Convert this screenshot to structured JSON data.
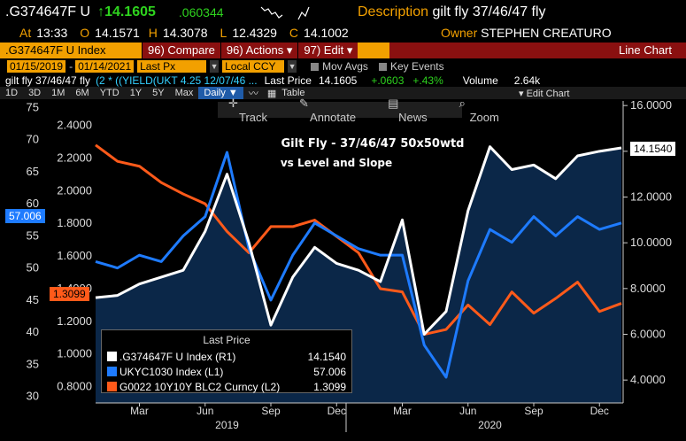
{
  "header": {
    "ticker": ".G374647F U",
    "last": "↑14.1605",
    "change": ".060344",
    "desc_label": "Description",
    "desc_value": "gilt fly 37/46/47 fly",
    "at_label": "At",
    "at_value": "13:33",
    "o_label": "O",
    "o_value": "14.1571",
    "h_label": "H",
    "h_value": "14.3078",
    "l_label": "L",
    "l_value": "12.4329",
    "c_label": "C",
    "c_value": "14.1002",
    "owner_label": "Owner",
    "owner_value": "STEPHEN CREATURO"
  },
  "toolbar": {
    "security": ".G374647F U Index",
    "compare_num": "96)",
    "compare": "Compare",
    "actions_num": "96)",
    "actions": "Actions",
    "edit_num": "97)",
    "edit": "Edit",
    "line_chart": "Line Chart"
  },
  "params": {
    "start_date": "01/15/2019",
    "end_date": "01/14/2021",
    "field": "Last Px",
    "currency": "Local CCY",
    "mov_avgs": "Mov Avgs",
    "key_events": "Key Events"
  },
  "info": {
    "name": "gilt fly 37/46/47 fly",
    "formula": "(2 * ((YIELD(UKT 4.25 12/07/46 ...",
    "last_price_label": "Last Price",
    "last_price": "14.1605",
    "change": "+.0603",
    "pct": "+.43%",
    "volume_label": "Volume",
    "volume": "2.64k"
  },
  "periods": [
    "1D",
    "3D",
    "1M",
    "6M",
    "YTD",
    "1Y",
    "5Y",
    "Max"
  ],
  "daily": "Daily",
  "table": "Table",
  "edit_chart": "Edit Chart",
  "tools": [
    "Track",
    "Annotate",
    "News",
    "Zoom"
  ],
  "colors": {
    "white_series": "#ffffff",
    "blue_series": "#1e7bff",
    "orange_series": "#ff5a1a",
    "accent": "#f2a000",
    "area": "#0b2748"
  },
  "chart_data": {
    "type": "line",
    "title": "Gilt Fly - 37/46/47 50x50wtd",
    "subtitle": "vs Level and Slope",
    "x_ticks": [
      "Mar",
      "Jun",
      "Sep",
      "Dec",
      "Mar",
      "Jun",
      "Sep",
      "Dec"
    ],
    "x_years": [
      "2019",
      "2020"
    ],
    "left_axis_outer": {
      "ticks": [
        "75",
        "70",
        "65",
        "60",
        "55",
        "50",
        "45",
        "40",
        "35",
        "30"
      ],
      "range": [
        29,
        76
      ]
    },
    "left_axis_inner": {
      "ticks": [
        "2.4000",
        "2.2000",
        "2.0000",
        "1.8000",
        "1.6000",
        "1.4000",
        "1.2000",
        "1.0000",
        "0.8000"
      ],
      "range": [
        0.7,
        2.55
      ]
    },
    "right_axis": {
      "ticks": [
        "16.0000",
        "14.0000",
        "12.0000",
        "10.0000",
        "8.0000",
        "6.0000",
        "4.0000"
      ],
      "range": [
        3,
        16.2
      ]
    },
    "series": [
      {
        "name": ".G374647F U Index (R1)",
        "value": "14.1540",
        "dates": [
          "2019-01",
          "2019-02",
          "2019-03",
          "2019-04",
          "2019-05",
          "2019-06",
          "2019-07",
          "2019-08",
          "2019-09",
          "2019-10",
          "2019-11",
          "2019-12",
          "2020-01",
          "2020-02",
          "2020-03",
          "2020-04",
          "2020-05",
          "2020-06",
          "2020-07",
          "2020-08",
          "2020-09",
          "2020-10",
          "2020-11",
          "2020-12",
          "2021-01"
        ],
        "values": [
          7.6,
          7.7,
          8.2,
          8.5,
          8.8,
          10.5,
          13.0,
          10.0,
          6.4,
          8.5,
          9.8,
          9.1,
          8.8,
          8.3,
          11.0,
          6.0,
          7.0,
          11.4,
          14.2,
          13.2,
          13.4,
          12.8,
          13.8,
          14.0,
          14.15
        ]
      },
      {
        "name": "UKYC1030 Index (L1)",
        "value": "57.006",
        "dates": [
          "2019-01",
          "2019-02",
          "2019-03",
          "2019-04",
          "2019-05",
          "2019-06",
          "2019-07",
          "2019-08",
          "2019-09",
          "2019-10",
          "2019-11",
          "2019-12",
          "2020-01",
          "2020-02",
          "2020-03",
          "2020-04",
          "2020-05",
          "2020-06",
          "2020-07",
          "2020-08",
          "2020-09",
          "2020-10",
          "2020-11",
          "2020-12",
          "2021-01"
        ],
        "values": [
          51,
          50,
          52,
          51,
          55,
          58,
          68,
          53,
          45,
          52,
          57,
          55,
          53,
          52,
          52,
          38,
          33,
          48,
          56,
          54,
          58,
          55,
          58,
          56,
          57.006
        ]
      },
      {
        "name": "G0022 10Y10Y BLC2 Curncy (L2)",
        "value": "1.3099",
        "dates": [
          "2019-01",
          "2019-02",
          "2019-03",
          "2019-04",
          "2019-05",
          "2019-06",
          "2019-07",
          "2019-08",
          "2019-09",
          "2019-10",
          "2019-11",
          "2019-12",
          "2020-01",
          "2020-02",
          "2020-03",
          "2020-04",
          "2020-05",
          "2020-06",
          "2020-07",
          "2020-08",
          "2020-09",
          "2020-10",
          "2020-11",
          "2020-12",
          "2021-01"
        ],
        "values": [
          2.28,
          2.18,
          2.15,
          2.05,
          1.98,
          1.92,
          1.75,
          1.62,
          1.78,
          1.78,
          1.82,
          1.72,
          1.62,
          1.4,
          1.38,
          1.12,
          1.15,
          1.3,
          1.18,
          1.38,
          1.25,
          1.34,
          1.44,
          1.26,
          1.31
        ]
      }
    ],
    "tags": {
      "left_outer": "57.006",
      "left_inner": "1.3099",
      "right": "14.1540"
    },
    "legend_title": "Last Price",
    "legend_position": "bottom-left",
    "grid": false
  }
}
